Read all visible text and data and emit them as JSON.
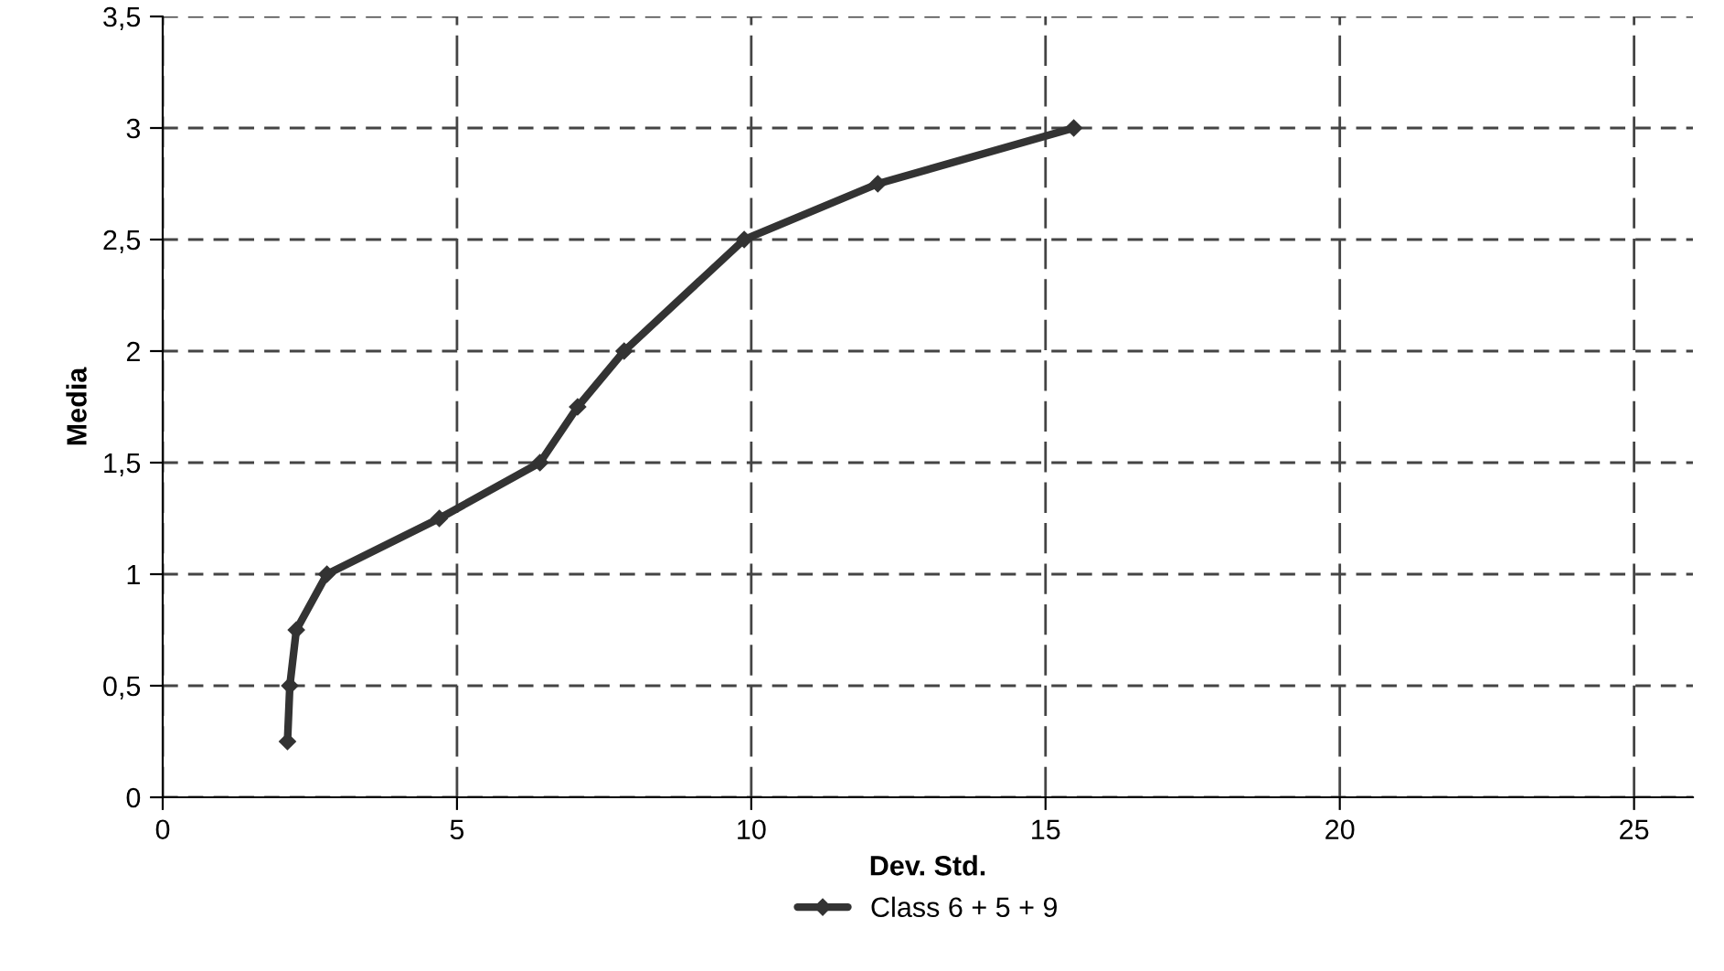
{
  "chart_data": {
    "type": "line",
    "xlabel": "Dev. Std.",
    "ylabel": "Media",
    "xlim": [
      0,
      26
    ],
    "xticks": [
      0,
      5,
      10,
      15,
      20,
      25
    ],
    "ylim": [
      0,
      3.5
    ],
    "yticks": [
      {
        "value": 0,
        "label": "0"
      },
      {
        "value": 0.5,
        "label": "0,5"
      },
      {
        "value": 1,
        "label": "1"
      },
      {
        "value": 1.5,
        "label": "1,5"
      },
      {
        "value": 2,
        "label": "2"
      },
      {
        "value": 2.5,
        "label": "2,5"
      },
      {
        "value": 3,
        "label": "3"
      },
      {
        "value": 3.5,
        "label": "3,5"
      }
    ],
    "grid": true,
    "legend": "bottom",
    "marker": "diamond",
    "line_style": "solid",
    "series": [
      {
        "name": "Class 6 + 5 + 9",
        "color": "#333333",
        "x": [
          2.12,
          2.16,
          2.27,
          2.79,
          4.7,
          6.41,
          7.05,
          7.84,
          9.88,
          12.15,
          15.48
        ],
        "values": [
          0.25,
          0.5,
          0.75,
          1.0,
          1.25,
          1.5,
          1.75,
          2.0,
          2.5,
          2.75,
          3.0
        ]
      }
    ]
  }
}
